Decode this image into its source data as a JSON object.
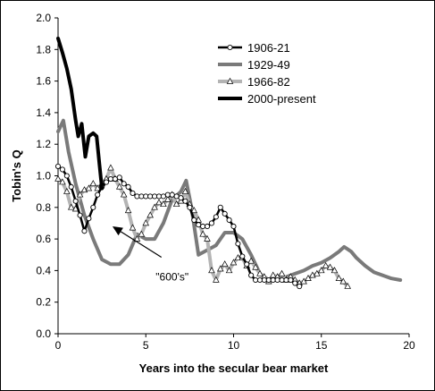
{
  "chart_data": {
    "type": "line",
    "xlabel": "Years into the secular bear market",
    "ylabel": "Tobin's Q",
    "xlim": [
      0,
      20
    ],
    "ylim": [
      0.0,
      2.0
    ],
    "x_ticks": [
      0,
      5,
      10,
      15,
      20
    ],
    "y_ticks": [
      0.0,
      0.2,
      0.4,
      0.6,
      0.8,
      1.0,
      1.2,
      1.4,
      1.6,
      1.8,
      2.0
    ],
    "y_tick_labels": [
      "0.0",
      "0.2",
      "0.4",
      "0.6",
      "0.8",
      "1.0",
      "1.2",
      "1.4",
      "1.6",
      "1.8",
      "2.0"
    ],
    "grid": false,
    "legend_position": "top-right",
    "annotation": {
      "text": "\"600's\"",
      "arrow_to": [
        3.1,
        0.68
      ],
      "text_at": [
        6.5,
        0.36
      ]
    },
    "series": [
      {
        "name": "1906-21",
        "color": "#000000",
        "marker": "circle",
        "points": [
          [
            0.0,
            1.06
          ],
          [
            0.25,
            1.04
          ],
          [
            0.5,
            1.0
          ],
          [
            0.75,
            0.93
          ],
          [
            1.0,
            0.84
          ],
          [
            1.25,
            0.75
          ],
          [
            1.5,
            0.65
          ],
          [
            1.75,
            0.73
          ],
          [
            2.0,
            0.8
          ],
          [
            2.25,
            0.88
          ],
          [
            2.5,
            0.93
          ],
          [
            2.75,
            0.96
          ],
          [
            3.0,
            0.98
          ],
          [
            3.25,
            0.98
          ],
          [
            3.5,
            0.99
          ],
          [
            3.75,
            0.95
          ],
          [
            4.0,
            0.93
          ],
          [
            4.25,
            0.89
          ],
          [
            4.5,
            0.87
          ],
          [
            4.75,
            0.87
          ],
          [
            5.0,
            0.87
          ],
          [
            5.25,
            0.87
          ],
          [
            5.5,
            0.87
          ],
          [
            5.75,
            0.87
          ],
          [
            6.0,
            0.87
          ],
          [
            6.25,
            0.88
          ],
          [
            6.5,
            0.88
          ],
          [
            6.75,
            0.87
          ],
          [
            7.0,
            0.86
          ],
          [
            7.25,
            0.84
          ],
          [
            7.5,
            0.8
          ],
          [
            7.75,
            0.72
          ],
          [
            8.0,
            0.69
          ],
          [
            8.25,
            0.68
          ],
          [
            8.5,
            0.68
          ],
          [
            8.75,
            0.7
          ],
          [
            9.0,
            0.74
          ],
          [
            9.25,
            0.8
          ],
          [
            9.5,
            0.76
          ],
          [
            9.75,
            0.72
          ],
          [
            10.0,
            0.68
          ],
          [
            10.25,
            0.57
          ],
          [
            10.5,
            0.49
          ],
          [
            10.75,
            0.44
          ],
          [
            11.0,
            0.37
          ],
          [
            11.25,
            0.34
          ],
          [
            11.5,
            0.34
          ],
          [
            11.75,
            0.34
          ],
          [
            12.0,
            0.34
          ],
          [
            12.25,
            0.34
          ],
          [
            12.5,
            0.34
          ],
          [
            12.75,
            0.34
          ],
          [
            13.0,
            0.34
          ],
          [
            13.25,
            0.34
          ],
          [
            13.5,
            0.32
          ],
          [
            13.75,
            0.3
          ]
        ]
      },
      {
        "name": "1929-49",
        "color": "#7a7a7a",
        "marker": "none",
        "points": [
          [
            0.0,
            1.28
          ],
          [
            0.3,
            1.35
          ],
          [
            0.6,
            1.15
          ],
          [
            1.0,
            0.95
          ],
          [
            1.5,
            0.75
          ],
          [
            2.0,
            0.6
          ],
          [
            2.5,
            0.47
          ],
          [
            3.0,
            0.44
          ],
          [
            3.5,
            0.44
          ],
          [
            4.0,
            0.5
          ],
          [
            4.5,
            0.63
          ],
          [
            5.0,
            0.6
          ],
          [
            5.5,
            0.6
          ],
          [
            6.0,
            0.7
          ],
          [
            6.5,
            0.85
          ],
          [
            7.0,
            0.9
          ],
          [
            7.3,
            0.97
          ],
          [
            7.6,
            0.8
          ],
          [
            8.0,
            0.5
          ],
          [
            8.5,
            0.53
          ],
          [
            9.0,
            0.56
          ],
          [
            9.5,
            0.64
          ],
          [
            10.0,
            0.64
          ],
          [
            10.5,
            0.6
          ],
          [
            11.0,
            0.5
          ],
          [
            11.5,
            0.38
          ],
          [
            12.0,
            0.34
          ],
          [
            12.5,
            0.34
          ],
          [
            13.0,
            0.36
          ],
          [
            13.5,
            0.38
          ],
          [
            14.0,
            0.4
          ],
          [
            14.5,
            0.43
          ],
          [
            15.0,
            0.45
          ],
          [
            15.5,
            0.48
          ],
          [
            16.0,
            0.52
          ],
          [
            16.3,
            0.55
          ],
          [
            16.7,
            0.52
          ],
          [
            17.0,
            0.48
          ],
          [
            17.5,
            0.43
          ],
          [
            18.0,
            0.39
          ],
          [
            18.5,
            0.37
          ],
          [
            19.0,
            0.35
          ],
          [
            19.5,
            0.34
          ]
        ]
      },
      {
        "name": "1966-82",
        "color": "#b4b4b4",
        "marker": "triangle",
        "points": [
          [
            0.0,
            0.98
          ],
          [
            0.25,
            0.96
          ],
          [
            0.5,
            0.9
          ],
          [
            0.75,
            0.8
          ],
          [
            1.0,
            0.79
          ],
          [
            1.25,
            0.88
          ],
          [
            1.5,
            0.91
          ],
          [
            1.75,
            0.92
          ],
          [
            2.0,
            0.95
          ],
          [
            2.25,
            0.92
          ],
          [
            2.5,
            0.95
          ],
          [
            2.75,
            0.98
          ],
          [
            3.0,
            1.05
          ],
          [
            3.25,
            0.98
          ],
          [
            3.5,
            0.93
          ],
          [
            3.75,
            0.88
          ],
          [
            4.0,
            0.78
          ],
          [
            4.25,
            0.67
          ],
          [
            4.5,
            0.6
          ],
          [
            4.75,
            0.63
          ],
          [
            5.0,
            0.7
          ],
          [
            5.25,
            0.75
          ],
          [
            5.5,
            0.8
          ],
          [
            5.75,
            0.83
          ],
          [
            6.0,
            0.82
          ],
          [
            6.25,
            0.85
          ],
          [
            6.5,
            0.88
          ],
          [
            6.75,
            0.82
          ],
          [
            7.0,
            0.84
          ],
          [
            7.25,
            0.9
          ],
          [
            7.5,
            0.82
          ],
          [
            7.75,
            0.78
          ],
          [
            8.0,
            0.72
          ],
          [
            8.25,
            0.63
          ],
          [
            8.5,
            0.6
          ],
          [
            8.75,
            0.4
          ],
          [
            9.0,
            0.34
          ],
          [
            9.25,
            0.41
          ],
          [
            9.5,
            0.44
          ],
          [
            9.75,
            0.4
          ],
          [
            10.0,
            0.45
          ],
          [
            10.25,
            0.48
          ],
          [
            10.5,
            0.48
          ],
          [
            10.75,
            0.43
          ],
          [
            11.0,
            0.46
          ],
          [
            11.25,
            0.42
          ],
          [
            11.5,
            0.38
          ],
          [
            11.75,
            0.36
          ],
          [
            12.0,
            0.33
          ],
          [
            12.25,
            0.37
          ],
          [
            12.5,
            0.36
          ],
          [
            12.75,
            0.38
          ],
          [
            13.0,
            0.34
          ],
          [
            13.25,
            0.36
          ],
          [
            13.5,
            0.34
          ],
          [
            13.75,
            0.32
          ],
          [
            14.0,
            0.33
          ],
          [
            14.25,
            0.35
          ],
          [
            14.5,
            0.37
          ],
          [
            14.75,
            0.38
          ],
          [
            15.0,
            0.4
          ],
          [
            15.25,
            0.43
          ],
          [
            15.5,
            0.42
          ],
          [
            15.75,
            0.4
          ],
          [
            16.0,
            0.35
          ],
          [
            16.25,
            0.33
          ],
          [
            16.5,
            0.3
          ]
        ]
      },
      {
        "name": "2000-present",
        "color": "#000000",
        "marker": "none",
        "points": [
          [
            0.0,
            1.87
          ],
          [
            0.25,
            1.78
          ],
          [
            0.5,
            1.68
          ],
          [
            0.75,
            1.55
          ],
          [
            1.0,
            1.35
          ],
          [
            1.15,
            1.25
          ],
          [
            1.35,
            1.33
          ],
          [
            1.55,
            1.12
          ],
          [
            1.75,
            1.25
          ],
          [
            2.0,
            1.27
          ],
          [
            2.2,
            1.25
          ],
          [
            2.35,
            1.08
          ],
          [
            2.5,
            0.92
          ]
        ]
      }
    ]
  }
}
